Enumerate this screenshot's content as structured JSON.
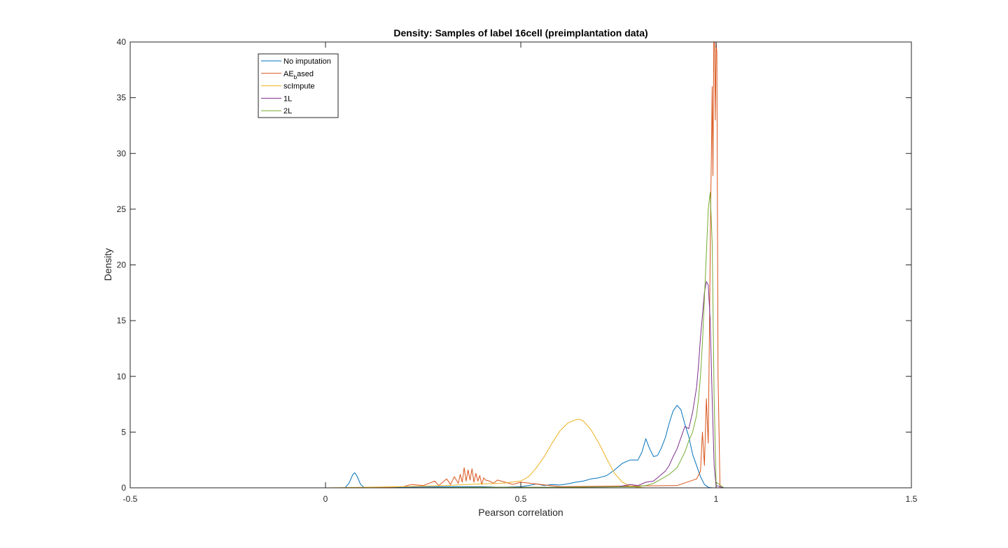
{
  "chart_data": {
    "type": "line",
    "title": "Density: Samples of label 16cell (preimplantation data)",
    "xlabel": "Pearson correlation",
    "ylabel": "Density",
    "xlim": [
      -0.5,
      1.5
    ],
    "ylim": [
      0,
      40
    ],
    "xticks": [
      -0.5,
      0,
      0.5,
      1,
      1.5
    ],
    "xtick_labels": [
      "-0.5",
      "0",
      "0.5",
      "1",
      "1.5"
    ],
    "yticks": [
      0,
      5,
      10,
      15,
      20,
      25,
      30,
      35,
      40
    ],
    "ytick_labels": [
      "0",
      "5",
      "10",
      "15",
      "20",
      "25",
      "30",
      "35",
      "40"
    ],
    "grid": false,
    "legend_position": "top-left",
    "series": [
      {
        "name": "No imputation",
        "legend_main": "No imputation",
        "legend_sub": "",
        "legend_tail": "",
        "color": "#0072BD",
        "x": [
          -0.43,
          -0.3,
          0.0,
          0.05,
          0.06,
          0.07,
          0.075,
          0.08,
          0.09,
          0.1,
          0.15,
          0.2,
          0.3,
          0.4,
          0.45,
          0.5,
          0.52,
          0.54,
          0.56,
          0.58,
          0.6,
          0.62,
          0.64,
          0.66,
          0.68,
          0.7,
          0.72,
          0.74,
          0.76,
          0.78,
          0.8,
          0.81,
          0.82,
          0.83,
          0.84,
          0.85,
          0.86,
          0.87,
          0.88,
          0.89,
          0.9,
          0.91,
          0.92,
          0.93,
          0.94,
          0.95,
          0.96,
          0.97,
          0.98,
          0.99,
          1.0,
          1.05,
          1.43
        ],
        "y": [
          0,
          0,
          0,
          0,
          0.4,
          1.2,
          1.35,
          1.1,
          0.3,
          0,
          0,
          0.05,
          0.1,
          0.1,
          0.05,
          0.1,
          0.2,
          0.35,
          0.2,
          0.3,
          0.25,
          0.35,
          0.5,
          0.6,
          0.8,
          0.9,
          1.1,
          1.6,
          2.2,
          2.5,
          2.5,
          3.2,
          4.4,
          3.5,
          2.8,
          2.9,
          3.6,
          4.5,
          5.8,
          6.9,
          7.4,
          7.0,
          5.7,
          4.6,
          3.0,
          2.0,
          1.0,
          0.3,
          0.05,
          0,
          0,
          0,
          0
        ]
      },
      {
        "name": "AE based",
        "legend_main": "AE",
        "legend_sub": "b",
        "legend_tail": "ased",
        "color": "#D95319",
        "x": [
          -0.3,
          0.1,
          0.2,
          0.22,
          0.25,
          0.28,
          0.29,
          0.3,
          0.31,
          0.32,
          0.33,
          0.34,
          0.345,
          0.35,
          0.355,
          0.36,
          0.365,
          0.37,
          0.375,
          0.38,
          0.385,
          0.39,
          0.395,
          0.4,
          0.405,
          0.41,
          0.42,
          0.43,
          0.44,
          0.46,
          0.48,
          0.5,
          0.6,
          0.9,
          0.95,
          0.96,
          0.965,
          0.97,
          0.975,
          0.98,
          0.983,
          0.986,
          0.988,
          0.99,
          0.992,
          0.994,
          0.996,
          0.998,
          1.0,
          1.002,
          1.005,
          1.01,
          1.43
        ],
        "y": [
          0,
          0,
          0.1,
          0.3,
          0.2,
          0.6,
          0.2,
          0.5,
          0.8,
          0.3,
          1.0,
          0.4,
          1.2,
          0.5,
          1.8,
          0.6,
          1.6,
          0.7,
          1.7,
          0.5,
          1.3,
          0.6,
          1.1,
          0.3,
          0.9,
          0.7,
          0.6,
          0.4,
          0.7,
          0.5,
          0.3,
          0.5,
          0.1,
          0.2,
          0.8,
          1.5,
          5.0,
          2.0,
          8.0,
          4.0,
          14.0,
          25.0,
          30.0,
          36.0,
          28.0,
          40.0,
          40.0,
          33.0,
          40.0,
          39.0,
          10.0,
          0,
          0
        ]
      },
      {
        "name": "scImpute",
        "legend_main": "scImpute",
        "legend_sub": "",
        "legend_tail": "",
        "color": "#EDB120",
        "x": [
          -0.3,
          0.0,
          0.2,
          0.3,
          0.4,
          0.45,
          0.5,
          0.52,
          0.54,
          0.56,
          0.58,
          0.6,
          0.62,
          0.64,
          0.65,
          0.66,
          0.68,
          0.7,
          0.72,
          0.74,
          0.76,
          0.78,
          0.8,
          0.82,
          0.9,
          1.0,
          1.43
        ],
        "y": [
          0,
          0,
          0.1,
          0.2,
          0.35,
          0.4,
          0.6,
          1.0,
          1.8,
          2.8,
          4.0,
          5.1,
          5.8,
          6.1,
          6.15,
          6.0,
          5.2,
          4.0,
          2.6,
          1.3,
          0.5,
          0.15,
          0.05,
          0,
          0,
          0,
          0
        ]
      },
      {
        "name": "1L",
        "legend_main": "1L",
        "legend_sub": "",
        "legend_tail": "",
        "color": "#7E2F8E",
        "x": [
          -0.3,
          0.2,
          0.4,
          0.6,
          0.75,
          0.78,
          0.8,
          0.82,
          0.84,
          0.86,
          0.87,
          0.88,
          0.89,
          0.9,
          0.91,
          0.92,
          0.93,
          0.94,
          0.95,
          0.955,
          0.96,
          0.965,
          0.97,
          0.975,
          0.98,
          0.985,
          0.99,
          0.995,
          1.0,
          1.02,
          1.43
        ],
        "y": [
          0,
          0,
          0.05,
          0.05,
          0.1,
          0.3,
          0.2,
          0.5,
          0.6,
          1.2,
          1.5,
          2.0,
          2.8,
          3.5,
          4.5,
          5.5,
          5.3,
          6.8,
          9.0,
          11.0,
          13.5,
          15.5,
          17.5,
          18.5,
          18.2,
          15.0,
          8.0,
          2.0,
          0.2,
          0,
          0
        ]
      },
      {
        "name": "2L",
        "legend_main": "2L",
        "legend_sub": "",
        "legend_tail": "",
        "color": "#77AC30",
        "x": [
          -0.3,
          0.2,
          0.4,
          0.6,
          0.8,
          0.82,
          0.84,
          0.86,
          0.88,
          0.9,
          0.91,
          0.92,
          0.93,
          0.94,
          0.95,
          0.955,
          0.96,
          0.965,
          0.97,
          0.975,
          0.98,
          0.985,
          0.99,
          0.995,
          1.0,
          1.02,
          1.43
        ],
        "y": [
          0,
          0,
          0.05,
          0.05,
          0.1,
          0.2,
          0.4,
          0.8,
          1.2,
          1.8,
          2.5,
          3.2,
          4.2,
          5.0,
          6.5,
          8.0,
          10.0,
          13.0,
          17.0,
          21.0,
          25.0,
          26.5,
          22.0,
          8.0,
          0.5,
          0,
          0
        ]
      }
    ]
  }
}
